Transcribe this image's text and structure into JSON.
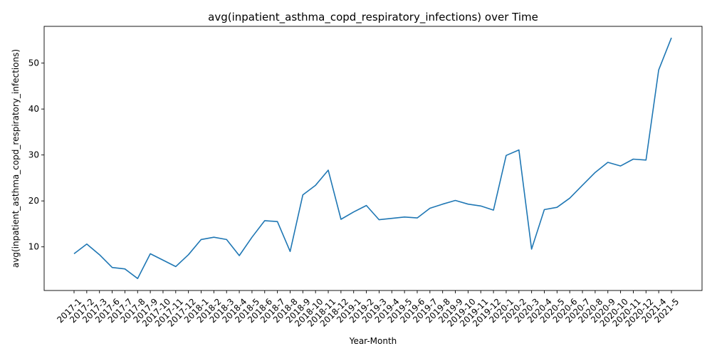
{
  "chart_data": {
    "type": "line",
    "title": "avg(inpatient_asthma_copd_respiratory_infections) over Time",
    "xlabel": "Year-Month",
    "ylabel": "avg(inpatient_asthma_copd_respiratory_infections)",
    "ylim": [
      0.5,
      58.0
    ],
    "yticks": [
      "10",
      "20",
      "30",
      "40",
      "50"
    ],
    "grid": false,
    "line_color": "#1f77b4",
    "categories": [
      "2017-1",
      "2017-2",
      "2017-3",
      "2017-6",
      "2017-7",
      "2017-8",
      "2017-9",
      "2017-10",
      "2017-11",
      "2017-12",
      "2018-1",
      "2018-2",
      "2018-3",
      "2018-4",
      "2018-5",
      "2018-6",
      "2018-7",
      "2018-8",
      "2018-9",
      "2018-10",
      "2018-11",
      "2018-12",
      "2019-1",
      "2019-2",
      "2019-3",
      "2019-4",
      "2019-5",
      "2019-6",
      "2019-7",
      "2019-8",
      "2019-9",
      "2019-10",
      "2019-11",
      "2019-12",
      "2020-1",
      "2020-2",
      "2020-3",
      "2020-4",
      "2020-5",
      "2020-6",
      "2020-7",
      "2020-8",
      "2020-9",
      "2020-10",
      "2020-11",
      "2020-12",
      "2021-4",
      "2021-5"
    ],
    "series": [
      {
        "values": [
          8.5,
          10.6,
          8.3,
          5.5,
          5.2,
          3.1,
          8.5,
          7.1,
          5.7,
          8.3,
          11.6,
          12.1,
          11.6,
          8.1,
          12.1,
          15.7,
          15.5,
          9.0,
          21.3,
          23.4,
          26.7,
          16.0,
          17.6,
          19.0,
          15.9,
          16.2,
          16.5,
          16.3,
          18.4,
          19.3,
          20.1,
          19.3,
          18.9,
          18.0,
          29.9,
          31.1,
          9.5,
          18.1,
          18.6,
          20.6,
          23.4,
          26.2,
          28.4,
          27.6,
          29.1,
          28.9,
          48.5,
          55.5
        ]
      }
    ]
  }
}
